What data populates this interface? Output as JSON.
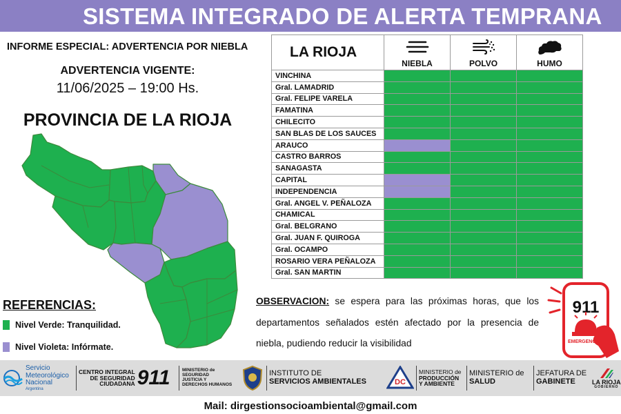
{
  "header": {
    "title": "SISTEMA INTEGRADO DE ALERTA TEMPRANA"
  },
  "report": {
    "subtitle": "INFORME ESPECIAL: ADVERTENCIA POR NIEBLA",
    "warning_label": "ADVERTENCIA VIGENTE:",
    "warning_datetime": "11/06/2025 – 19:00 Hs.",
    "province_title": "PROVINCIA DE LA RIOJA"
  },
  "colors": {
    "green": "#1eb04f",
    "violet": "#9a8fd0",
    "banner": "#8b80c4",
    "red": "#e3242b"
  },
  "table": {
    "region_header": "LA RIOJA",
    "columns": [
      {
        "label": "NIEBLA",
        "icon": "fog-icon"
      },
      {
        "label": "POLVO",
        "icon": "dust-wind-icon"
      },
      {
        "label": "HUMO",
        "icon": "smoke-icon"
      }
    ],
    "rows": [
      {
        "name": "VINCHINA",
        "levels": [
          "verde",
          "verde",
          "verde"
        ]
      },
      {
        "name": "Gral. LAMADRID",
        "levels": [
          "verde",
          "verde",
          "verde"
        ]
      },
      {
        "name": "Gral. FELIPE VARELA",
        "levels": [
          "verde",
          "verde",
          "verde"
        ]
      },
      {
        "name": "FAMATINA",
        "levels": [
          "verde",
          "verde",
          "verde"
        ]
      },
      {
        "name": "CHILECITO",
        "levels": [
          "verde",
          "verde",
          "verde"
        ]
      },
      {
        "name": "SAN BLAS DE LOS SAUCES",
        "levels": [
          "verde",
          "verde",
          "verde"
        ]
      },
      {
        "name": "ARAUCO",
        "levels": [
          "violeta",
          "verde",
          "verde"
        ]
      },
      {
        "name": "CASTRO BARROS",
        "levels": [
          "verde",
          "verde",
          "verde"
        ]
      },
      {
        "name": "SANAGASTA",
        "levels": [
          "verde",
          "verde",
          "verde"
        ]
      },
      {
        "name": "CAPITAL",
        "levels": [
          "violeta",
          "verde",
          "verde"
        ]
      },
      {
        "name": "INDEPENDENCIA",
        "levels": [
          "violeta",
          "verde",
          "verde"
        ]
      },
      {
        "name": "Gral. ANGEL V. PEÑALOZA",
        "levels": [
          "verde",
          "verde",
          "verde"
        ]
      },
      {
        "name": "CHAMICAL",
        "levels": [
          "verde",
          "verde",
          "verde"
        ]
      },
      {
        "name": "Gral. BELGRANO",
        "levels": [
          "verde",
          "verde",
          "verde"
        ]
      },
      {
        "name": "Gral. JUAN F. QUIROGA",
        "levels": [
          "verde",
          "verde",
          "verde"
        ]
      },
      {
        "name": "Gral. OCAMPO",
        "levels": [
          "verde",
          "verde",
          "verde"
        ]
      },
      {
        "name": "ROSARIO VERA PEÑALOZA",
        "levels": [
          "verde",
          "verde",
          "verde"
        ]
      },
      {
        "name": "Gral. SAN MARTIN",
        "levels": [
          "verde",
          "verde",
          "verde"
        ]
      }
    ]
  },
  "references": {
    "title": "REFERENCIAS:",
    "items": [
      {
        "label": "Nivel Verde: Tranquilidad.",
        "level": "verde"
      },
      {
        "label": "Nivel Violeta: Infórmate.",
        "level": "violeta"
      }
    ]
  },
  "observation": {
    "label": "OBSERVACION:",
    "text": " se espera para las próximas horas, que los departamentos señalados estén afectado por la presencia de niebla, pudiendo reducir la visibilidad"
  },
  "badge911": {
    "number": "911",
    "caption": "EMERGENCIAS"
  },
  "footer": {
    "logos": [
      {
        "name": "smn",
        "icon": "smn-wave-icon",
        "lines": [
          "Servicio",
          "Meteorológico",
          "Nacional"
        ],
        "sub": "Argentina"
      },
      {
        "name": "centro-911",
        "lines": [
          "CENTRO INTEGRAL",
          "DE SEGURIDAD",
          "CIUDADANA"
        ],
        "mark": "911"
      },
      {
        "name": "ministerio-seguridad",
        "lines": [
          "MINISTERIO de",
          "SEGURIDAD",
          "JUSTICIA Y",
          "DERECHOS HUMANOS"
        ]
      },
      {
        "name": "policia",
        "icon": "police-shield-icon"
      },
      {
        "name": "instituto",
        "lines": [
          "INSTITUTO DE",
          "SERVICIOS AMBIENTALES"
        ]
      },
      {
        "name": "defensa-civil",
        "icon": "civil-defense-icon",
        "mark": "DC"
      },
      {
        "name": "ministerio-produccion",
        "lines": [
          "MINISTERIO de",
          "PRODUCCIÓN",
          "Y AMBIENTE"
        ]
      },
      {
        "name": "ministerio-salud",
        "lines": [
          "MINISTERIO de",
          "SALUD"
        ]
      },
      {
        "name": "jefatura",
        "lines": [
          "JEFATURA DE",
          "GABINETE"
        ]
      },
      {
        "name": "gobierno",
        "icon": "la-rioja-logo-icon",
        "lines": [
          "LA RIOJA"
        ],
        "sub": "GOBIERNO"
      }
    ],
    "mail": "Mail: dirgestionsocioambiental@gmail.com"
  }
}
